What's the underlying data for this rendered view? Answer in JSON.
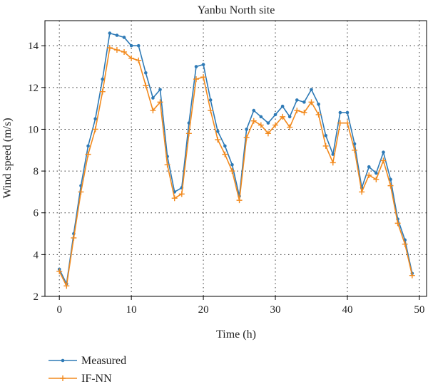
{
  "chart_data": {
    "type": "line",
    "title": "Yanbu North site",
    "xlabel": "Time (h)",
    "ylabel": "Wind speed (m/s)",
    "xlim": [
      -2,
      51
    ],
    "ylim": [
      2,
      15.2
    ],
    "xticks": [
      0,
      10,
      20,
      30,
      40,
      50
    ],
    "yticks": [
      2,
      4,
      6,
      8,
      10,
      12,
      14
    ],
    "grid": true,
    "legend_position": "bottom-left, below axes",
    "x": [
      0,
      1,
      2,
      3,
      4,
      5,
      6,
      7,
      8,
      9,
      10,
      11,
      12,
      13,
      14,
      15,
      16,
      17,
      18,
      19,
      20,
      21,
      22,
      23,
      24,
      25,
      26,
      27,
      28,
      29,
      30,
      31,
      32,
      33,
      34,
      35,
      36,
      37,
      38,
      39,
      40,
      41,
      42,
      43,
      44,
      45,
      46,
      47,
      48,
      49
    ],
    "series": [
      {
        "name": "Measured",
        "color": "#2e7ab6",
        "marker": "dot",
        "values": [
          3.3,
          2.6,
          5.0,
          7.3,
          9.2,
          10.5,
          12.4,
          14.6,
          14.5,
          14.4,
          14.0,
          14.0,
          12.7,
          11.5,
          11.9,
          8.7,
          7.0,
          7.2,
          10.3,
          13.0,
          13.1,
          11.4,
          9.9,
          9.2,
          8.3,
          6.8,
          10.0,
          10.9,
          10.6,
          10.3,
          10.7,
          11.1,
          10.6,
          11.4,
          11.3,
          11.9,
          11.2,
          9.7,
          8.8,
          10.8,
          10.8,
          9.3,
          7.2,
          8.2,
          7.9,
          8.9,
          7.6,
          5.7,
          4.7,
          3.1
        ]
      },
      {
        "name": "IF-NN",
        "color": "#f28a1e",
        "marker": "plus",
        "values": [
          3.2,
          2.5,
          4.8,
          7.0,
          8.8,
          10.0,
          11.8,
          13.9,
          13.8,
          13.7,
          13.4,
          13.3,
          12.1,
          10.9,
          11.3,
          8.3,
          6.7,
          6.9,
          9.8,
          12.4,
          12.5,
          10.9,
          9.5,
          8.8,
          8.0,
          6.6,
          9.6,
          10.4,
          10.2,
          9.8,
          10.2,
          10.6,
          10.1,
          10.9,
          10.8,
          11.3,
          10.7,
          9.2,
          8.4,
          10.3,
          10.3,
          9.0,
          7.0,
          7.8,
          7.6,
          8.5,
          7.3,
          5.5,
          4.5,
          3.0
        ]
      }
    ]
  }
}
